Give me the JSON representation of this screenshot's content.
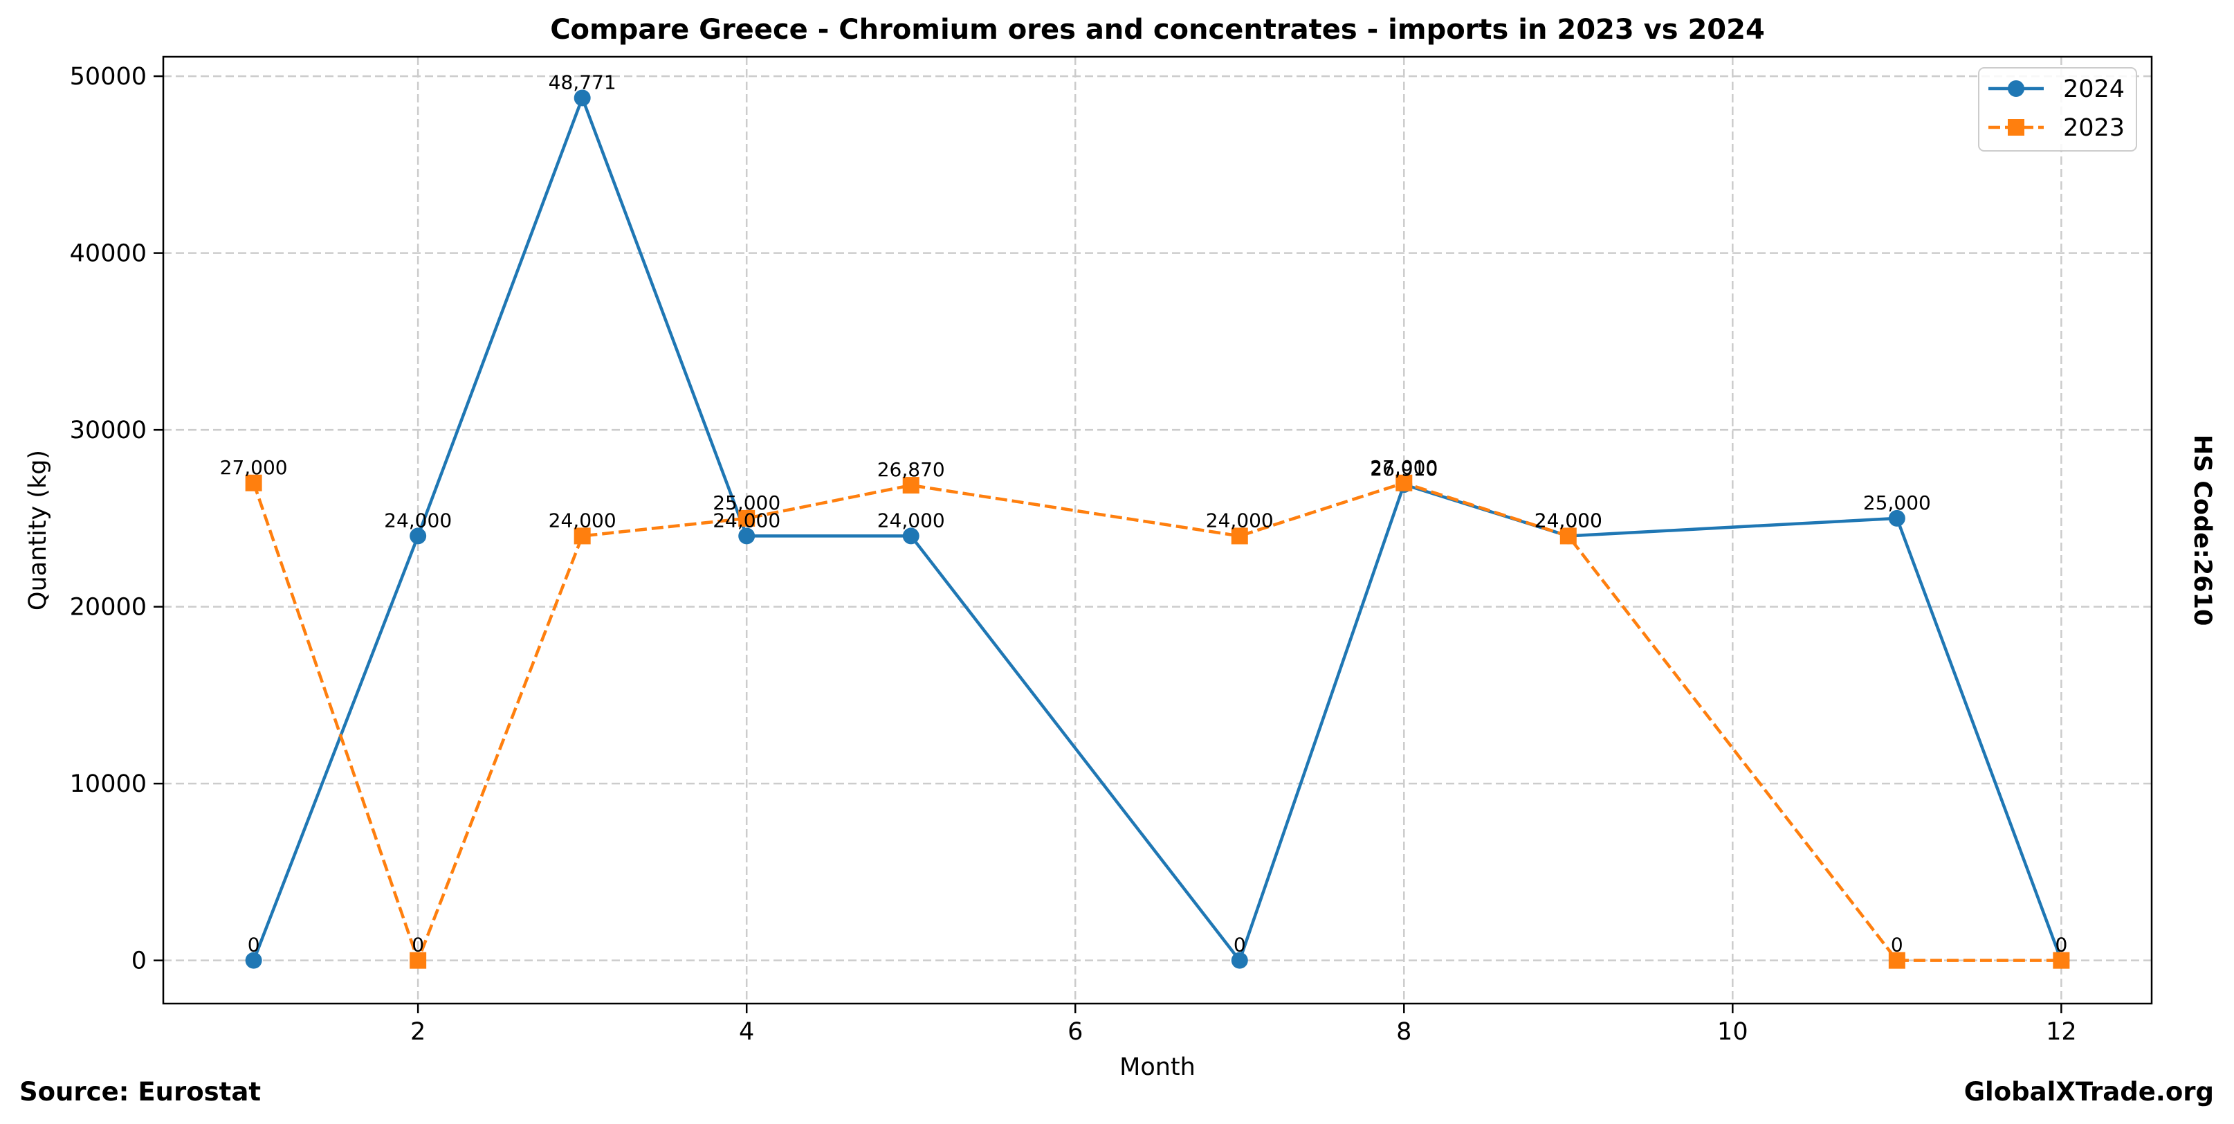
{
  "chart_data": {
    "type": "line",
    "title": "Compare Greece - Chromium ores and concentrates - imports in 2023 vs 2024",
    "xlabel": "Month",
    "ylabel": "Quantity (kg)",
    "xlim": [
      0.45,
      12.55
    ],
    "ylim": [
      -2440,
      51100
    ],
    "xticks": [
      2,
      4,
      6,
      8,
      10,
      12
    ],
    "yticks": [
      0,
      10000,
      20000,
      30000,
      40000,
      50000
    ],
    "grid": true,
    "legend_position": "top-right",
    "series": [
      {
        "name": "2024",
        "color": "#1f77b4",
        "line_style": "solid",
        "marker": "circle",
        "x": [
          1,
          2,
          3,
          4,
          5,
          7,
          8,
          9,
          11,
          12
        ],
        "values": [
          0,
          24000,
          48771,
          24000,
          24000,
          0,
          26910,
          24000,
          25000,
          0
        ],
        "labels": [
          "0",
          "24,000",
          "48,771",
          "24,000",
          "24,000",
          "0",
          "26,910",
          "24,000",
          "25,000",
          "0"
        ]
      },
      {
        "name": "2023",
        "color": "#ff7f0e",
        "line_style": "dashed",
        "marker": "square",
        "x": [
          1,
          2,
          3,
          4,
          5,
          7,
          8,
          9,
          11,
          12
        ],
        "values": [
          27000,
          0,
          24000,
          25000,
          26870,
          24000,
          27000,
          24000,
          0,
          0
        ],
        "labels": [
          "27,000",
          "0",
          "24,000",
          "25,000",
          "26,870",
          "24,000",
          "27,000",
          "24,000",
          "0",
          "0"
        ]
      }
    ]
  },
  "annotations": {
    "side_label": "HS Code:2610",
    "source": "Source: Eurostat",
    "brand": "GlobalXTrade.org"
  }
}
